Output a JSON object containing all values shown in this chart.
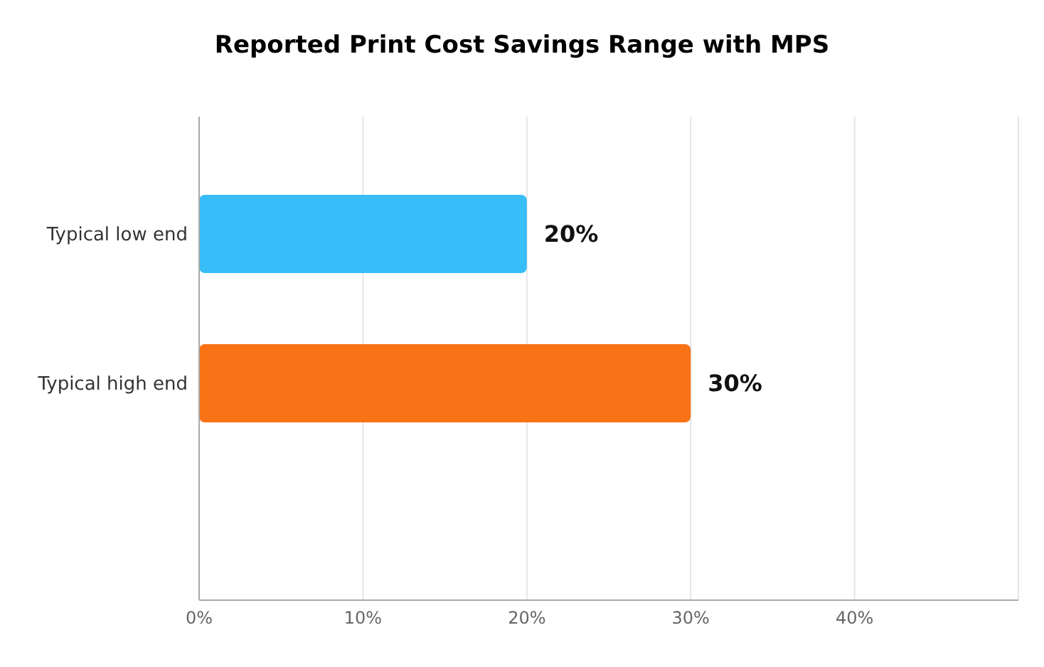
{
  "chart_data": {
    "type": "bar",
    "orientation": "horizontal",
    "title": "Reported Print Cost Savings Range with MPS",
    "categories": [
      "Typical low end",
      "Typical high end"
    ],
    "values": [
      20,
      30
    ],
    "colors": [
      "#38bdf8",
      "#f97316"
    ],
    "value_labels": [
      "20%",
      "30%"
    ],
    "xlim": [
      0,
      50
    ],
    "xticks": [
      {
        "value": 0,
        "label": "0%"
      },
      {
        "value": 10,
        "label": "10%"
      },
      {
        "value": 20,
        "label": "20%"
      },
      {
        "value": 30,
        "label": "30%"
      },
      {
        "value": 40,
        "label": "40%"
      },
      {
        "value": 50,
        "label": null
      }
    ],
    "grid": "x"
  }
}
